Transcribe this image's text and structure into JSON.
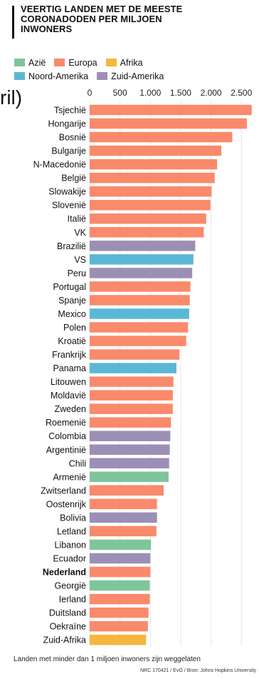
{
  "title_lines": [
    "VEERTIG LANDEN MET DE MEESTE",
    "CORONADODEN PER MILJOEN",
    "INWONERS"
  ],
  "legend": [
    {
      "label": "Azië",
      "color": "#7fc59a"
    },
    {
      "label": "Europa",
      "color": "#f98a6b"
    },
    {
      "label": "Afrika",
      "color": "#f7b63d"
    },
    {
      "label": "Noord-Amerika",
      "color": "#5ab8d6"
    },
    {
      "label": "Zuid-Amerika",
      "color": "#9b8fb5"
    }
  ],
  "stray_text": "ril)",
  "chart_data": {
    "type": "bar",
    "orientation": "horizontal",
    "xlim": [
      0,
      2650
    ],
    "ticks": [
      0,
      500,
      1000,
      1500,
      2000,
      2500
    ],
    "tick_labels": [
      "0",
      "500",
      "1.000",
      "1.500",
      "2.000",
      "2.500"
    ],
    "highlight": "Nederland",
    "categories": [
      "Tsjechië",
      "Hongarije",
      "Bosnië",
      "Bulgarije",
      "N-Macedonië",
      "België",
      "Slowakije",
      "Slovenië",
      "Italië",
      "VK",
      "Brazilië",
      "VS",
      "Peru",
      "Portugal",
      "Spanje",
      "Mexico",
      "Polen",
      "Kroatië",
      "Frankrijk",
      "Panama",
      "Litouwen",
      "Moldavië",
      "Zweden",
      "Roemenië",
      "Colombia",
      "Argentinië",
      "Chili",
      "Armenië",
      "Zwitserland",
      "Oostenrijk",
      "Bolivia",
      "Letland",
      "Libanon",
      "Ecuador",
      "Nederland",
      "Georgië",
      "Ierland",
      "Duitsland",
      "Oekraïne",
      "Zuid-Afrika"
    ],
    "values": [
      2670,
      2590,
      2350,
      2170,
      2100,
      2060,
      2010,
      1990,
      1920,
      1880,
      1740,
      1710,
      1690,
      1660,
      1650,
      1640,
      1620,
      1590,
      1480,
      1430,
      1380,
      1370,
      1370,
      1340,
      1330,
      1320,
      1310,
      1300,
      1220,
      1110,
      1110,
      1100,
      1010,
      1000,
      1000,
      990,
      990,
      970,
      960,
      930
    ],
    "regions": [
      "Europa",
      "Europa",
      "Europa",
      "Europa",
      "Europa",
      "Europa",
      "Europa",
      "Europa",
      "Europa",
      "Europa",
      "Zuid-Amerika",
      "Noord-Amerika",
      "Zuid-Amerika",
      "Europa",
      "Europa",
      "Noord-Amerika",
      "Europa",
      "Europa",
      "Europa",
      "Noord-Amerika",
      "Europa",
      "Europa",
      "Europa",
      "Europa",
      "Zuid-Amerika",
      "Zuid-Amerika",
      "Zuid-Amerika",
      "Azië",
      "Europa",
      "Europa",
      "Zuid-Amerika",
      "Europa",
      "Azië",
      "Zuid-Amerika",
      "Europa",
      "Azië",
      "Europa",
      "Europa",
      "Europa",
      "Afrika"
    ]
  },
  "footnote": "Landen met minder dan 1 miljoen inwoners zijn weggelaten",
  "source": "NRC 170421 / EvG / Bron: Johns Hopkins University"
}
